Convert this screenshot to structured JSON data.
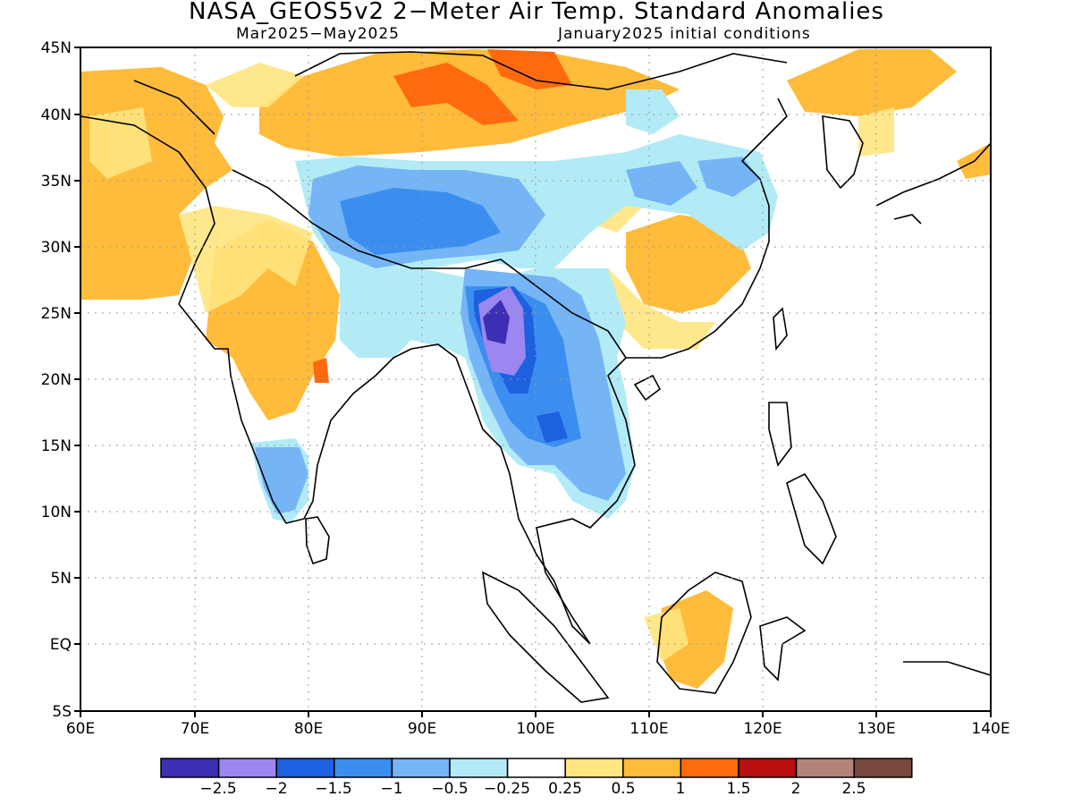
{
  "title": "NASA_GEOS5v2 2−Meter Air Temp. Standard Anomalies",
  "period": "Mar2025−May2025",
  "init": "January2025 initial conditions",
  "map": {
    "lon_range": [
      60,
      140
    ],
    "lat_range": [
      -5,
      45
    ],
    "lon_ticks": [
      "60E",
      "70E",
      "80E",
      "90E",
      "100E",
      "110E",
      "120E",
      "130E",
      "140E"
    ],
    "lat_ticks": [
      "45N",
      "40N",
      "35N",
      "30N",
      "25N",
      "20N",
      "15N",
      "10N",
      "5N",
      "EQ",
      "5S"
    ],
    "grid": true
  },
  "colorbar": {
    "colors": [
      "#3d2fb4",
      "#9b87ef",
      "#1d60e0",
      "#3b8ef0",
      "#75b5f5",
      "#b2ebf6",
      "#ffffff",
      "#ffe680",
      "#ffbb3a",
      "#ff6a0f",
      "#b80f0f",
      "#b3857a",
      "#76493c"
    ],
    "labels": [
      "−2.5",
      "−2",
      "−1.5",
      "−1",
      "−0.5",
      "−0.25",
      "0.25",
      "0.5",
      "1",
      "1.5",
      "2",
      "2.5"
    ]
  }
}
